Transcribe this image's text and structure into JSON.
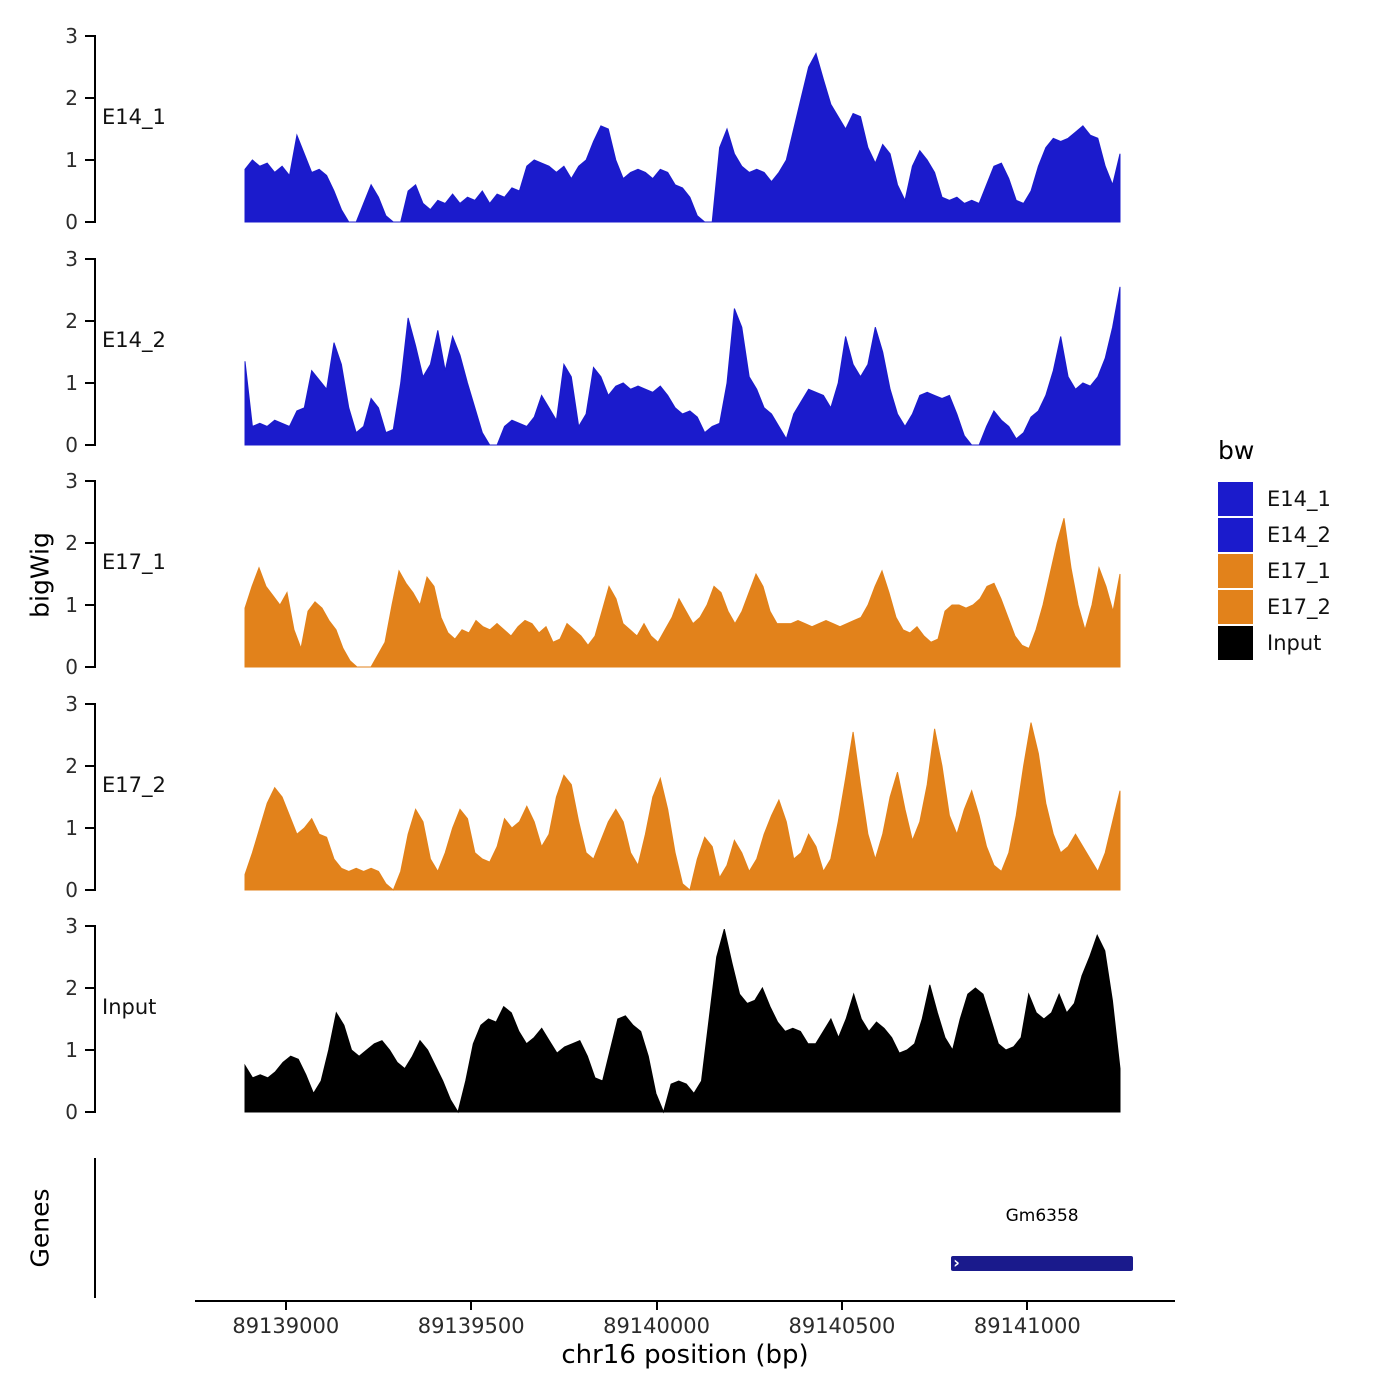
{
  "figure": {
    "background": "#FFFFFF"
  },
  "axes": {
    "y_title": "bigWig",
    "x_title": "chr16 position (bp)",
    "genes_title": "Genes"
  },
  "legend": {
    "title": "bw",
    "items": [
      {
        "label": "E14_1",
        "color": "#1B1BCC"
      },
      {
        "label": "E14_2",
        "color": "#1B1BCC"
      },
      {
        "label": "E17_1",
        "color": "#E2821B"
      },
      {
        "label": "E17_2",
        "color": "#E2821B"
      },
      {
        "label": "Input",
        "color": "#000000"
      }
    ]
  },
  "genes": {
    "gene": {
      "label": "Gm6358",
      "start": 89140795,
      "end": 89141285,
      "color": "#1A1A8C",
      "strand_glyph": "›"
    }
  },
  "chart_data": {
    "type": "area",
    "title": "",
    "xlabel": "chr16 position (bp)",
    "ylabel": "bigWig",
    "legend_title": "bw",
    "x_start": 89138890,
    "x_end": 89141250,
    "x_ticks": [
      89139000,
      89139500,
      89140000,
      89140500,
      89141000
    ],
    "x_tick_labels": [
      "89139000",
      "89139500",
      "89140000",
      "89140500",
      "89141000"
    ],
    "y_ticks": [
      0,
      1,
      2,
      3
    ],
    "y_max": 3,
    "series": [
      {
        "name": "E14_1",
        "color": "#1B1BCC",
        "values": [
          0.85,
          1.0,
          0.9,
          0.95,
          0.8,
          0.9,
          0.75,
          1.4,
          1.1,
          0.8,
          0.85,
          0.75,
          0.5,
          0.2,
          0,
          0,
          0.3,
          0.6,
          0.4,
          0.1,
          0,
          0,
          0.5,
          0.6,
          0.3,
          0.2,
          0.35,
          0.3,
          0.45,
          0.3,
          0.4,
          0.35,
          0.5,
          0.3,
          0.45,
          0.4,
          0.55,
          0.5,
          0.9,
          1.0,
          0.95,
          0.9,
          0.8,
          0.9,
          0.7,
          0.9,
          1.0,
          1.3,
          1.55,
          1.5,
          1.0,
          0.7,
          0.8,
          0.85,
          0.8,
          0.7,
          0.85,
          0.8,
          0.6,
          0.55,
          0.4,
          0.1,
          0,
          0,
          1.2,
          1.5,
          1.1,
          0.9,
          0.8,
          0.85,
          0.8,
          0.65,
          0.8,
          1.0,
          1.5,
          2.0,
          2.5,
          2.72,
          2.3,
          1.9,
          1.7,
          1.5,
          1.75,
          1.7,
          1.2,
          0.95,
          1.25,
          1.1,
          0.6,
          0.35,
          0.9,
          1.15,
          1.0,
          0.8,
          0.4,
          0.35,
          0.4,
          0.3,
          0.35,
          0.3,
          0.6,
          0.9,
          0.95,
          0.7,
          0.35,
          0.3,
          0.5,
          0.9,
          1.2,
          1.35,
          1.3,
          1.35,
          1.45,
          1.55,
          1.4,
          1.35,
          0.9,
          0.6,
          1.1
        ]
      },
      {
        "name": "E14_2",
        "color": "#1B1BCC",
        "values": [
          1.35,
          0.3,
          0.35,
          0.3,
          0.4,
          0.35,
          0.3,
          0.55,
          0.6,
          1.2,
          1.05,
          0.9,
          1.65,
          1.3,
          0.6,
          0.2,
          0.3,
          0.75,
          0.6,
          0.2,
          0.25,
          1.0,
          2.05,
          1.6,
          1.1,
          1.3,
          1.85,
          1.2,
          1.75,
          1.45,
          1.0,
          0.6,
          0.2,
          0,
          0,
          0.3,
          0.4,
          0.35,
          0.3,
          0.45,
          0.8,
          0.6,
          0.4,
          1.3,
          1.1,
          0.3,
          0.5,
          1.25,
          1.1,
          0.8,
          0.95,
          1.0,
          0.9,
          0.95,
          0.9,
          0.85,
          0.95,
          0.8,
          0.6,
          0.5,
          0.55,
          0.45,
          0.2,
          0.3,
          0.35,
          1.0,
          2.2,
          1.9,
          1.1,
          0.9,
          0.6,
          0.5,
          0.3,
          0.1,
          0.5,
          0.7,
          0.9,
          0.85,
          0.8,
          0.6,
          1.0,
          1.75,
          1.3,
          1.1,
          1.3,
          1.9,
          1.5,
          0.9,
          0.5,
          0.3,
          0.5,
          0.8,
          0.85,
          0.8,
          0.75,
          0.8,
          0.5,
          0.15,
          0,
          0,
          0.3,
          0.55,
          0.4,
          0.3,
          0.1,
          0.2,
          0.45,
          0.55,
          0.8,
          1.2,
          1.75,
          1.1,
          0.9,
          1.0,
          0.95,
          1.1,
          1.4,
          1.9,
          2.55
        ]
      },
      {
        "name": "E17_1",
        "color": "#E2821B",
        "values": [
          0.95,
          1.3,
          1.6,
          1.3,
          1.15,
          1.0,
          1.2,
          0.6,
          0.3,
          0.9,
          1.05,
          0.95,
          0.75,
          0.6,
          0.3,
          0.1,
          0,
          0,
          0,
          0.2,
          0.4,
          1.0,
          1.55,
          1.35,
          1.2,
          1.0,
          1.45,
          1.3,
          0.8,
          0.55,
          0.45,
          0.6,
          0.55,
          0.75,
          0.65,
          0.6,
          0.7,
          0.6,
          0.5,
          0.65,
          0.75,
          0.7,
          0.55,
          0.65,
          0.4,
          0.45,
          0.7,
          0.6,
          0.5,
          0.35,
          0.5,
          0.9,
          1.3,
          1.1,
          0.7,
          0.6,
          0.5,
          0.7,
          0.5,
          0.4,
          0.6,
          0.8,
          1.1,
          0.9,
          0.7,
          0.8,
          1.0,
          1.3,
          1.2,
          0.9,
          0.7,
          0.9,
          1.2,
          1.5,
          1.3,
          0.9,
          0.7,
          0.7,
          0.7,
          0.75,
          0.7,
          0.65,
          0.7,
          0.75,
          0.7,
          0.65,
          0.7,
          0.75,
          0.8,
          1.0,
          1.3,
          1.55,
          1.2,
          0.8,
          0.6,
          0.55,
          0.65,
          0.5,
          0.4,
          0.45,
          0.9,
          1.0,
          1.0,
          0.95,
          1.0,
          1.1,
          1.3,
          1.35,
          1.1,
          0.8,
          0.5,
          0.35,
          0.3,
          0.6,
          1.0,
          1.5,
          2.0,
          2.4,
          1.6,
          1.0,
          0.6,
          1.0,
          1.6,
          1.3,
          0.9,
          1.5
        ]
      },
      {
        "name": "E17_2",
        "color": "#E2821B",
        "values": [
          0.25,
          0.6,
          1.0,
          1.4,
          1.65,
          1.5,
          1.2,
          0.9,
          1.0,
          1.15,
          0.9,
          0.85,
          0.5,
          0.35,
          0.3,
          0.35,
          0.3,
          0.35,
          0.3,
          0.1,
          0,
          0.3,
          0.9,
          1.3,
          1.1,
          0.5,
          0.3,
          0.6,
          1.0,
          1.3,
          1.15,
          0.6,
          0.5,
          0.45,
          0.7,
          1.15,
          1.0,
          1.1,
          1.35,
          1.1,
          0.7,
          0.9,
          1.5,
          1.85,
          1.7,
          1.1,
          0.6,
          0.5,
          0.8,
          1.1,
          1.3,
          1.1,
          0.6,
          0.4,
          0.9,
          1.5,
          1.8,
          1.3,
          0.6,
          0.1,
          0,
          0.5,
          0.85,
          0.7,
          0.2,
          0.4,
          0.8,
          0.6,
          0.3,
          0.5,
          0.9,
          1.2,
          1.45,
          1.1,
          0.5,
          0.6,
          0.9,
          0.7,
          0.3,
          0.5,
          1.1,
          1.8,
          2.55,
          1.7,
          0.9,
          0.5,
          0.9,
          1.5,
          1.9,
          1.3,
          0.8,
          1.1,
          1.7,
          2.6,
          2.0,
          1.2,
          0.9,
          1.3,
          1.6,
          1.2,
          0.7,
          0.4,
          0.3,
          0.6,
          1.2,
          2.0,
          2.7,
          2.2,
          1.4,
          0.9,
          0.6,
          0.7,
          0.9,
          0.7,
          0.5,
          0.3,
          0.6,
          1.1,
          1.6
        ]
      },
      {
        "name": "Input",
        "color": "#000000",
        "values": [
          0.75,
          0.55,
          0.6,
          0.55,
          0.65,
          0.8,
          0.9,
          0.85,
          0.6,
          0.3,
          0.5,
          1.0,
          1.6,
          1.4,
          1.0,
          0.9,
          1.0,
          1.1,
          1.15,
          1.0,
          0.8,
          0.7,
          0.9,
          1.15,
          1.0,
          0.75,
          0.5,
          0.2,
          0,
          0.5,
          1.1,
          1.4,
          1.5,
          1.45,
          1.7,
          1.6,
          1.3,
          1.1,
          1.2,
          1.35,
          1.15,
          0.95,
          1.05,
          1.1,
          1.15,
          0.9,
          0.55,
          0.5,
          1.0,
          1.5,
          1.55,
          1.4,
          1.3,
          0.9,
          0.3,
          0,
          0.45,
          0.5,
          0.45,
          0.3,
          0.5,
          1.5,
          2.5,
          2.95,
          2.4,
          1.9,
          1.75,
          1.8,
          2.0,
          1.7,
          1.45,
          1.3,
          1.35,
          1.3,
          1.1,
          1.1,
          1.3,
          1.5,
          1.2,
          1.5,
          1.9,
          1.5,
          1.3,
          1.45,
          1.35,
          1.2,
          0.95,
          1.0,
          1.1,
          1.5,
          2.05,
          1.6,
          1.2,
          1.0,
          1.5,
          1.9,
          2.0,
          1.9,
          1.5,
          1.1,
          1.0,
          1.05,
          1.2,
          1.9,
          1.6,
          1.5,
          1.6,
          1.9,
          1.6,
          1.75,
          2.2,
          2.5,
          2.85,
          2.6,
          1.8,
          0.7
        ]
      }
    ]
  }
}
